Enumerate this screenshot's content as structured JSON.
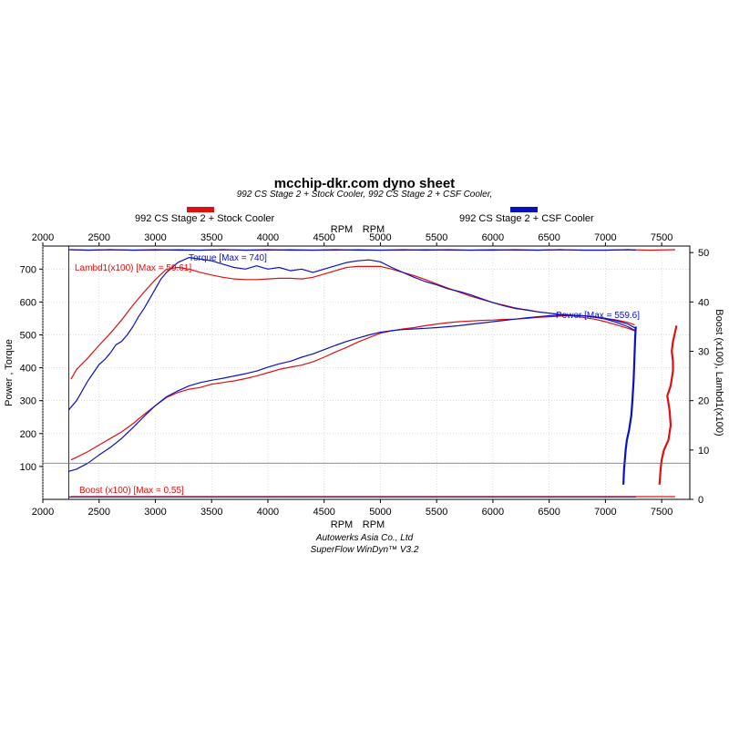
{
  "chart_data": {
    "type": "line",
    "title": "mcchip-dkr.com dyno sheet",
    "subtitle": "992 CS Stage 2 + Stock Cooler, 992 CS Stage 2 + CSF Cooler,",
    "xlabel": "RPM",
    "xlabel2": "RPM",
    "ylabel_left": "Power , Torque",
    "ylabel_right": "Boost (x100), Lambd1(x100)",
    "xlim": [
      2000,
      7750
    ],
    "ylim_left": [
      0,
      770
    ],
    "ylim_right": [
      0,
      51.33
    ],
    "xticks": [
      2000,
      2500,
      3000,
      3500,
      4000,
      4500,
      5000,
      5500,
      6000,
      6500,
      7000,
      7500
    ],
    "yticks_left": [
      100,
      200,
      300,
      400,
      500,
      600,
      700
    ],
    "yticks_right": [
      0,
      10,
      20,
      30,
      40,
      50
    ],
    "grid": true,
    "legend": [
      {
        "name": "992 CS Stage 2 + Stock Cooler",
        "color": "#e01010"
      },
      {
        "name": "992 CS Stage 2 + CSF Cooler",
        "color": "#0a12c0"
      }
    ],
    "annotations": {
      "torque": "Torque [Max = 740]",
      "lambda": "Lambd1(x100) [Max = 50.61]",
      "power": "Power  [Max = 559.6]",
      "boost": "Boost (x100) [Max = 0.55]"
    },
    "series": [
      {
        "name": "Torque",
        "run": "stock",
        "color": "#e01010",
        "x": [
          2250,
          2300,
          2400,
          2500,
          2600,
          2700,
          2800,
          2900,
          3000,
          3100,
          3200,
          3300,
          3400,
          3500,
          3600,
          3700,
          3800,
          3900,
          4000,
          4100,
          4200,
          4300,
          4400,
          4500,
          4600,
          4700,
          4800,
          4900,
          5000,
          5100,
          5200,
          5300,
          5400,
          5500,
          5600,
          5700,
          5800,
          5900,
          6000,
          6100,
          6200,
          6300,
          6400,
          6500,
          6600,
          6700,
          6800,
          6900,
          7000,
          7100,
          7200,
          7260
        ],
        "y": [
          365,
          395,
          430,
          468,
          505,
          545,
          590,
          630,
          668,
          700,
          705,
          700,
          690,
          682,
          675,
          670,
          668,
          668,
          670,
          672,
          672,
          670,
          675,
          685,
          695,
          705,
          708,
          708,
          708,
          700,
          690,
          680,
          668,
          655,
          642,
          630,
          618,
          608,
          598,
          590,
          582,
          575,
          570,
          566,
          562,
          558,
          553,
          548,
          540,
          530,
          520,
          512
        ]
      },
      {
        "name": "Torque",
        "run": "csf",
        "color": "#0a12c0",
        "x": [
          2230,
          2300,
          2350,
          2400,
          2450,
          2500,
          2550,
          2600,
          2650,
          2700,
          2750,
          2800,
          2850,
          2900,
          2950,
          3000,
          3050,
          3100,
          3150,
          3200,
          3300,
          3400,
          3500,
          3600,
          3700,
          3800,
          3900,
          4000,
          4100,
          4200,
          4300,
          4400,
          4500,
          4600,
          4700,
          4800,
          4900,
          5000,
          5100,
          5200,
          5300,
          5400,
          5500,
          5600,
          5700,
          5800,
          5900,
          6000,
          6100,
          6200,
          6300,
          6400,
          6500,
          6600,
          6700,
          6800,
          6900,
          7000,
          7100,
          7200,
          7270
        ],
        "y": [
          272,
          300,
          330,
          360,
          385,
          410,
          425,
          445,
          470,
          480,
          500,
          525,
          555,
          580,
          610,
          640,
          670,
          690,
          705,
          720,
          735,
          730,
          725,
          715,
          705,
          700,
          710,
          700,
          705,
          695,
          700,
          690,
          700,
          710,
          720,
          725,
          728,
          722,
          705,
          690,
          675,
          662,
          652,
          640,
          632,
          622,
          610,
          598,
          588,
          580,
          576,
          570,
          566,
          562,
          560,
          558,
          554,
          548,
          538,
          525,
          512
        ]
      },
      {
        "name": "Power",
        "run": "stock",
        "color": "#e01010",
        "x": [
          2250,
          2300,
          2400,
          2500,
          2600,
          2700,
          2800,
          2900,
          3000,
          3100,
          3200,
          3300,
          3400,
          3500,
          3600,
          3700,
          3800,
          3900,
          4000,
          4100,
          4200,
          4300,
          4400,
          4500,
          4600,
          4700,
          4800,
          4900,
          5000,
          5100,
          5200,
          5300,
          5400,
          5500,
          5600,
          5700,
          5800,
          5900,
          6000,
          6100,
          6200,
          6300,
          6400,
          6500,
          6600,
          6700,
          6800,
          6900,
          7000,
          7100,
          7200,
          7260
        ],
        "y": [
          120,
          128,
          145,
          165,
          185,
          205,
          230,
          258,
          285,
          310,
          325,
          335,
          340,
          350,
          355,
          360,
          367,
          375,
          385,
          395,
          402,
          408,
          418,
          432,
          448,
          462,
          478,
          492,
          505,
          512,
          518,
          522,
          528,
          533,
          537,
          540,
          542,
          544,
          545,
          547,
          548,
          550,
          553,
          555,
          557,
          559,
          558,
          555,
          550,
          545,
          538,
          530
        ]
      },
      {
        "name": "Power",
        "run": "csf",
        "color": "#0a12c0",
        "x": [
          2230,
          2300,
          2400,
          2500,
          2600,
          2700,
          2800,
          2900,
          3000,
          3100,
          3200,
          3300,
          3400,
          3500,
          3600,
          3700,
          3800,
          3900,
          4000,
          4100,
          4200,
          4300,
          4400,
          4500,
          4600,
          4700,
          4800,
          4900,
          5000,
          5100,
          5200,
          5300,
          5400,
          5500,
          5600,
          5700,
          5800,
          5900,
          6000,
          6100,
          6200,
          6300,
          6400,
          6500,
          6600,
          6700,
          6800,
          6900,
          7000,
          7100,
          7200,
          7270
        ],
        "y": [
          85,
          92,
          110,
          135,
          158,
          185,
          218,
          252,
          285,
          312,
          330,
          345,
          355,
          362,
          368,
          375,
          382,
          390,
          402,
          412,
          420,
          432,
          442,
          455,
          468,
          480,
          490,
          500,
          508,
          513,
          516,
          518,
          520,
          522,
          525,
          528,
          532,
          536,
          540,
          544,
          548,
          552,
          555,
          558,
          560,
          559,
          558,
          555,
          550,
          543,
          533,
          520
        ]
      },
      {
        "name": "Lambd1(x100)",
        "run": "stock",
        "color": "#e01010",
        "x": [
          2250,
          2400,
          2600,
          2800,
          3000,
          3200,
          3400,
          3600,
          3800,
          4000,
          4200,
          4400,
          4600,
          4800,
          5000,
          5200,
          5400,
          5600,
          5800,
          6000,
          6200,
          6400,
          6600,
          6800,
          7000,
          7200,
          7400,
          7620
        ],
        "y": [
          50.6,
          50.5,
          50.6,
          50.5,
          50.5,
          50.6,
          50.5,
          50.6,
          50.5,
          50.5,
          50.6,
          50.5,
          50.5,
          50.6,
          50.5,
          50.5,
          50.6,
          50.5,
          50.5,
          50.6,
          50.5,
          50.5,
          50.6,
          50.5,
          50.5,
          50.6,
          50.5,
          50.6
        ]
      },
      {
        "name": "Lambd1(x100)",
        "run": "csf",
        "color": "#0a12c0",
        "x": [
          2230,
          2400,
          2600,
          2800,
          3000,
          3200,
          3400,
          3600,
          3800,
          4000,
          4200,
          4400,
          4600,
          4800,
          5000,
          5200,
          5400,
          5600,
          5800,
          6000,
          6200,
          6400,
          6600,
          6800,
          7000,
          7200,
          7270
        ],
        "y": [
          50.6,
          50.5,
          50.6,
          50.5,
          50.6,
          50.5,
          50.5,
          50.6,
          50.5,
          50.6,
          50.5,
          50.5,
          50.6,
          50.5,
          50.5,
          50.6,
          50.5,
          50.6,
          50.5,
          50.5,
          50.6,
          50.5,
          50.6,
          50.5,
          50.5,
          50.6,
          50.5
        ]
      },
      {
        "name": "Boost (x100)",
        "run": "stock",
        "color": "#e01010",
        "x": [
          2250,
          7620
        ],
        "y": [
          0.55,
          0.55
        ]
      },
      {
        "name": "Boost (x100)",
        "run": "csf",
        "color": "#0a12c0",
        "x": [
          2230,
          7270
        ],
        "y": [
          0.5,
          0.5
        ]
      },
      {
        "name": "Lambd1 tail",
        "run": "stock",
        "color": "#e01010",
        "x": [
          7480,
          7490,
          7500,
          7520,
          7560,
          7580,
          7570,
          7550,
          7580,
          7600,
          7600,
          7590,
          7600,
          7630,
          7620
        ],
        "y": [
          3,
          6,
          8,
          10,
          12,
          15,
          18,
          21,
          23,
          26,
          28,
          30,
          32,
          35,
          35
        ]
      },
      {
        "name": "Lambd1 tail",
        "run": "csf",
        "color": "#0a12c0",
        "x": [
          7160,
          7165,
          7180,
          7190,
          7210,
          7230,
          7240,
          7250,
          7255,
          7260,
          7265,
          7270
        ],
        "y": [
          3,
          6,
          10,
          12,
          14,
          17,
          20,
          24,
          27,
          30,
          33,
          35
        ]
      }
    ]
  }
}
